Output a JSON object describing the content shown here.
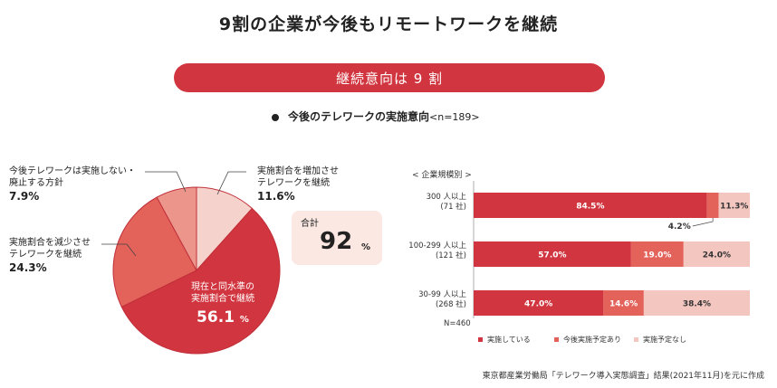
{
  "title": "9割の企業が今後もリモートワークを継続",
  "banner": "継続意向は 9 割",
  "subheading": "今後のテレワークの実施意向",
  "subheading_n": "<n=189>",
  "total": {
    "label": "合計",
    "value": "92",
    "unit": "%"
  },
  "source": "東京都産業労働局「テレワーク導入実態調査」結果(2021年11月)を元に作成",
  "colors": {
    "primary": "#d1353f",
    "medium": "#e3625a",
    "light": "#f3c6c0",
    "pie_light": "#f6d2cc",
    "pie_salmon": "#ec968b"
  },
  "chart_data": [
    {
      "type": "pie",
      "slices": [
        {
          "label": "実施割合を増加させテレワークを継続",
          "label_lines": [
            "実施割合を増加させ",
            "テレワークを継続"
          ],
          "value": 11.6,
          "display": "11.6%"
        },
        {
          "label": "現在と同水準の実施割合で継続",
          "label_lines": [
            "現在と同水準の",
            "実施割合で継続"
          ],
          "value": 56.1,
          "display": "56.1",
          "unit": "%"
        },
        {
          "label": "実施割合を減少させテレワークを継続",
          "label_lines": [
            "実施割合を減少させ",
            "テレワークを継続"
          ],
          "value": 24.3,
          "display": "24.3%"
        },
        {
          "label": "今後テレワークは実施しない・廃止する方針",
          "label_lines": [
            "今後テレワークは実施しない・",
            "廃止する方針"
          ],
          "value": 7.9,
          "display": "7.9%"
        }
      ]
    },
    {
      "type": "bar",
      "orientation": "horizontal",
      "stacked": true,
      "title": "< 企業規模別 >",
      "categories": [
        {
          "line1": "300 人以上",
          "line2": "(71 社)"
        },
        {
          "line1": "100-299 人以上",
          "line2": "(121 社)"
        },
        {
          "line1": "30-99 人以上",
          "line2": "(268 社)"
        }
      ],
      "series": [
        {
          "name": "実施している",
          "values": [
            84.5,
            57.0,
            47.0
          ],
          "labels": [
            "84.5%",
            "57.0%",
            "47.0%"
          ]
        },
        {
          "name": "今後実施予定あり",
          "values": [
            4.2,
            19.0,
            14.6
          ],
          "labels": [
            "4.2%",
            "19.0%",
            "14.6%"
          ]
        },
        {
          "name": "実施予定なし",
          "values": [
            11.3,
            24.0,
            38.4
          ],
          "labels": [
            "11.3%",
            "24.0%",
            "38.4%"
          ]
        }
      ],
      "xlim": [
        0,
        100
      ],
      "footnote": "N=460"
    }
  ]
}
